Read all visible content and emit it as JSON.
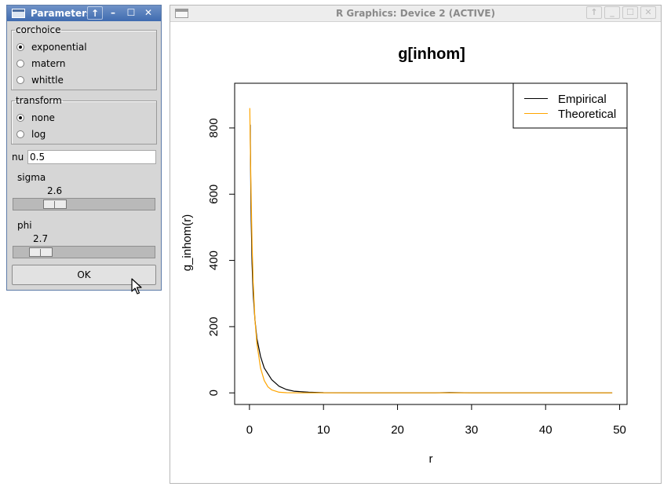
{
  "param_window": {
    "title": "Parameters",
    "titlebar_buttons": {
      "up": "↑",
      "minimize": "–",
      "maximize": "☐",
      "close": "✕"
    },
    "corchoice": {
      "legend": "corchoice",
      "options": [
        {
          "label": "exponential",
          "checked": true
        },
        {
          "label": "matern",
          "checked": false
        },
        {
          "label": "whittle",
          "checked": false
        }
      ]
    },
    "transform": {
      "legend": "transform",
      "options": [
        {
          "label": "none",
          "checked": true
        },
        {
          "label": "log",
          "checked": false
        }
      ]
    },
    "nu": {
      "label": "nu",
      "value": "0.5"
    },
    "sigma": {
      "label": "sigma",
      "value": "2.6",
      "position_fraction": 0.25
    },
    "phi": {
      "label": "phi",
      "value": "2.7",
      "position_fraction": 0.13
    },
    "ok_label": "OK"
  },
  "graphics_window": {
    "title": "R Graphics: Device 2 (ACTIVE)",
    "titlebar_buttons": {
      "up": "↑",
      "minimize": "_",
      "maximize": "☐",
      "close": "✕"
    }
  },
  "chart_data": {
    "type": "line",
    "title": "g[inhom]",
    "xlabel": "r",
    "ylabel": "g_inhom(r)",
    "xlim": [
      -2,
      51
    ],
    "ylim": [
      -35,
      935
    ],
    "xticks": [
      0,
      10,
      20,
      30,
      40,
      50
    ],
    "xtick_labels": [
      "0",
      "10",
      "20",
      "30",
      "40",
      "50"
    ],
    "yticks": [
      0,
      200,
      400,
      600,
      800
    ],
    "ytick_labels": [
      "0",
      "200",
      "400",
      "600",
      "800"
    ],
    "grid": false,
    "legend_position": "top-right",
    "series": [
      {
        "name": "Empirical",
        "color": "#000000",
        "x": [
          0.1,
          0.2,
          0.35,
          0.5,
          0.75,
          1,
          1.5,
          2,
          3,
          4,
          5,
          6,
          8,
          10,
          15,
          20,
          25,
          27,
          30,
          35,
          40,
          45,
          49
        ],
        "y": [
          810,
          560,
          390,
          300,
          220,
          165,
          110,
          75,
          40,
          20,
          10,
          5,
          2,
          0.5,
          0,
          0,
          0,
          0.8,
          0,
          0,
          0,
          0,
          0
        ]
      },
      {
        "name": "Theoretical",
        "color": "#FFA500",
        "x": [
          0.05,
          0.1,
          0.2,
          0.35,
          0.5,
          0.75,
          1,
          1.5,
          2,
          2.5,
          3,
          4,
          5,
          7,
          10,
          20,
          30,
          40,
          49
        ],
        "y": [
          860,
          770,
          620,
          450,
          335,
          220,
          150,
          75,
          37,
          18,
          9,
          2,
          0.5,
          0,
          0,
          0,
          0,
          0,
          0
        ]
      }
    ]
  }
}
